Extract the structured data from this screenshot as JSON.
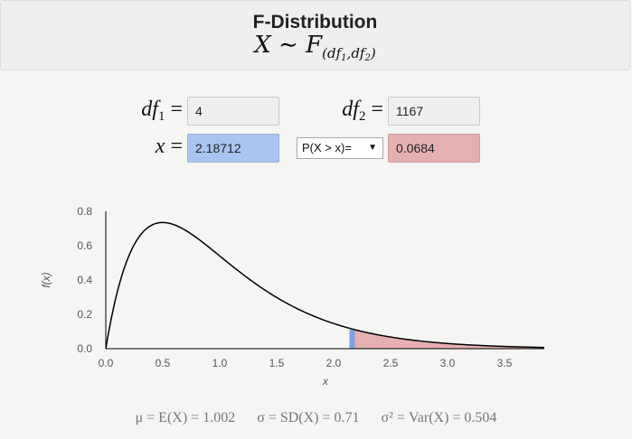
{
  "header": {
    "title": "F-Distribution",
    "formula_lhs": "X",
    "formula_sim": "∼",
    "formula_f": "F",
    "formula_df1": "df",
    "formula_df1_sub": "1",
    "formula_df2": "df",
    "formula_df2_sub": "2"
  },
  "params": {
    "df1_label": "df",
    "df1_sub": "1",
    "df1_value": "4",
    "df2_label": "df",
    "df2_sub": "2",
    "df2_value": "1167",
    "x_label": "x",
    "x_value": "2.18712",
    "equals": "=",
    "prob_select": "P(X > x)=",
    "prob_value": "0.0684"
  },
  "chart_data": {
    "type": "line",
    "ylabel": "f(x)",
    "xlabel": "x",
    "xlim": [
      0,
      3.85
    ],
    "ylim": [
      0,
      0.8
    ],
    "x_ticks": [
      "0.0",
      "0.5",
      "1.0",
      "1.5",
      "2.0",
      "2.5",
      "3.0",
      "3.5"
    ],
    "y_ticks": [
      "0.0",
      "0.2",
      "0.4",
      "0.6",
      "0.8"
    ],
    "df1": 4,
    "df2": 1167,
    "x_marker": 2.18712,
    "tail": "right",
    "tail_color": "#e6b0b1",
    "marker_color": "#7aa2e6",
    "curve_color": "#000000"
  },
  "stats": {
    "mean": "μ = E(X) = 1.002",
    "sd": "σ = SD(X) = 0.71",
    "var": "σ² = Var(X) = 0.504"
  }
}
